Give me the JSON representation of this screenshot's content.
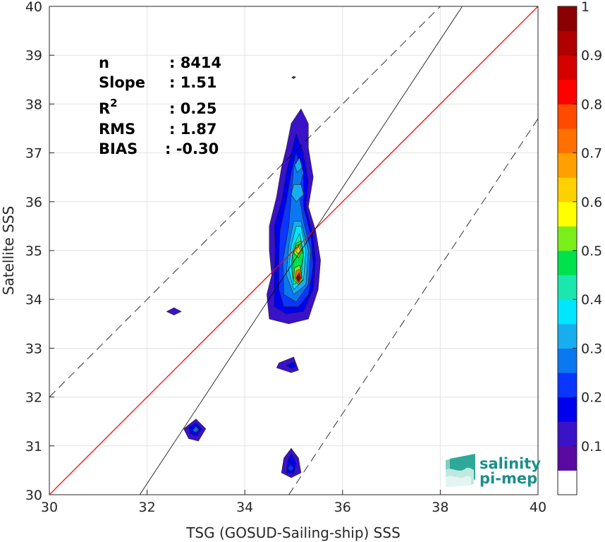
{
  "chart_data": {
    "type": "scatter",
    "subtype": "density-contour",
    "xlabel": "TSG (GOSUD-Sailing-ship) SSS",
    "ylabel": "Satellite SSS",
    "xlim": [
      30,
      40
    ],
    "ylim": [
      30,
      40
    ],
    "xticks": [
      "30",
      "32",
      "34",
      "36",
      "38",
      "40"
    ],
    "yticks": [
      "30",
      "31",
      "32",
      "33",
      "34",
      "35",
      "36",
      "37",
      "38",
      "39",
      "40"
    ],
    "grid": true,
    "reference_lines": {
      "one_to_one": {
        "color": "#ff0000",
        "from": [
          30,
          30
        ],
        "to": [
          40,
          40
        ]
      },
      "regression": {
        "color": "#000000",
        "slope": 1.51,
        "from": [
          31.85,
          30
        ],
        "to": [
          38.45,
          40
        ]
      },
      "upper_dashed": {
        "color": "#000000",
        "from": [
          30,
          32
        ],
        "to": [
          38,
          40
        ]
      },
      "lower_dashed": {
        "color": "#000000",
        "from": [
          34.9,
          30
        ],
        "to": [
          40,
          37.7
        ]
      }
    },
    "stats": [
      {
        "label": "n",
        "value": ": 8414"
      },
      {
        "label": "Slope",
        "value": ": 1.51"
      },
      {
        "label": "R",
        "sup": "2",
        "value": ": 0.25"
      },
      {
        "label": "RMS",
        "value": ": 1.87"
      },
      {
        "label": "BIAS",
        "value": ": -0.30"
      }
    ],
    "colorbar": {
      "ticks": [
        "0.1",
        "0.2",
        "0.3",
        "0.4",
        "0.5",
        "0.6",
        "0.7",
        "0.8",
        "0.9",
        "1"
      ],
      "range": [
        0,
        1
      ],
      "colors": [
        "#ffffff",
        "#5a0aa0",
        "#3a12c8",
        "#0000ee",
        "#0a36ff",
        "#0a78f0",
        "#17aef0",
        "#00e6ff",
        "#1be6ae",
        "#00e14e",
        "#7aef1a",
        "#ffff00",
        "#ffd000",
        "#ffa000",
        "#ff7000",
        "#ff4a00",
        "#ff0000",
        "#d60000",
        "#b00000",
        "#8b0000"
      ]
    },
    "contour_clusters": [
      {
        "name": "main",
        "levels": [
          {
            "level": 0.1,
            "color": "#3a12c8",
            "points": [
              [
                35.15,
                37.9
              ],
              [
                35.3,
                37.6
              ],
              [
                35.3,
                37.1
              ],
              [
                35.4,
                36.5
              ],
              [
                35.3,
                35.9
              ],
              [
                35.45,
                35.4
              ],
              [
                35.55,
                34.8
              ],
              [
                35.5,
                34.2
              ],
              [
                35.3,
                33.6
              ],
              [
                34.9,
                33.5
              ],
              [
                34.5,
                33.6
              ],
              [
                34.45,
                34.1
              ],
              [
                34.55,
                34.5
              ],
              [
                34.5,
                35.0
              ],
              [
                34.5,
                35.5
              ],
              [
                34.65,
                36.1
              ],
              [
                34.75,
                36.7
              ],
              [
                34.85,
                37.1
              ],
              [
                34.95,
                37.6
              ]
            ]
          },
          {
            "level": 0.2,
            "color": "#0000ee",
            "points": [
              [
                35.05,
                37.4
              ],
              [
                35.2,
                37.0
              ],
              [
                35.3,
                36.4
              ],
              [
                35.25,
                35.9
              ],
              [
                35.4,
                35.3
              ],
              [
                35.45,
                34.8
              ],
              [
                35.4,
                34.2
              ],
              [
                35.2,
                33.75
              ],
              [
                34.85,
                33.7
              ],
              [
                34.6,
                33.85
              ],
              [
                34.6,
                34.5
              ],
              [
                34.62,
                35.0
              ],
              [
                34.6,
                35.5
              ],
              [
                34.75,
                36.0
              ],
              [
                34.85,
                36.6
              ],
              [
                34.95,
                37.0
              ]
            ]
          },
          {
            "level": 0.25,
            "color": "#0a36ff",
            "points": [
              [
                35.05,
                37.0
              ],
              [
                35.2,
                36.5
              ],
              [
                35.2,
                35.9
              ],
              [
                35.35,
                35.3
              ],
              [
                35.4,
                34.7
              ],
              [
                35.3,
                34.1
              ],
              [
                35.1,
                33.85
              ],
              [
                34.8,
                33.85
              ],
              [
                34.7,
                34.2
              ],
              [
                34.7,
                34.8
              ],
              [
                34.72,
                35.4
              ],
              [
                34.85,
                36.0
              ],
              [
                34.95,
                36.6
              ]
            ]
          },
          {
            "level": 0.3,
            "color": "#0a78f0",
            "points": [
              [
                35.1,
                36.9
              ],
              [
                35.2,
                36.6
              ],
              [
                35.1,
                36.2
              ],
              [
                35.2,
                35.6
              ],
              [
                35.35,
                35.0
              ],
              [
                35.3,
                34.3
              ],
              [
                35.05,
                33.95
              ],
              [
                34.8,
                34.1
              ],
              [
                34.78,
                34.8
              ],
              [
                34.9,
                35.5
              ],
              [
                34.95,
                36.1
              ],
              [
                35.0,
                36.7
              ]
            ]
          },
          {
            "level": 0.35,
            "color": "#17aef0",
            "points": [
              [
                35.15,
                35.6
              ],
              [
                35.3,
                35.0
              ],
              [
                35.25,
                34.3
              ],
              [
                35.0,
                34.1
              ],
              [
                34.85,
                34.5
              ],
              [
                34.9,
                35.1
              ],
              [
                35.0,
                35.6
              ]
            ]
          },
          {
            "level": 0.35,
            "color": "#17aef0",
            "points": [
              [
                35.15,
                36.35
              ],
              [
                35.2,
                36.15
              ],
              [
                35.05,
                36.0
              ],
              [
                34.95,
                36.15
              ],
              [
                35.0,
                36.35
              ]
            ]
          },
          {
            "level": 0.35,
            "color": "#17aef0",
            "points": [
              [
                35.12,
                36.9
              ],
              [
                35.17,
                36.7
              ],
              [
                35.07,
                36.6
              ],
              [
                35.02,
                36.75
              ]
            ]
          },
          {
            "level": 0.4,
            "color": "#00e6ff",
            "points": [
              [
                35.15,
                35.5
              ],
              [
                35.25,
                35.0
              ],
              [
                35.2,
                34.4
              ],
              [
                35.0,
                34.2
              ],
              [
                34.9,
                34.6
              ],
              [
                34.95,
                35.1
              ],
              [
                35.05,
                35.5
              ]
            ]
          },
          {
            "level": 0.45,
            "color": "#1be6ae",
            "points": [
              [
                35.12,
                35.35
              ],
              [
                35.2,
                34.95
              ],
              [
                35.15,
                34.4
              ],
              [
                35.0,
                34.3
              ],
              [
                34.95,
                34.7
              ],
              [
                35.0,
                35.1
              ]
            ]
          },
          {
            "level": 0.5,
            "color": "#00e14e",
            "points": [
              [
                35.15,
                35.2
              ],
              [
                35.2,
                34.9
              ],
              [
                35.1,
                34.4
              ],
              [
                34.98,
                34.45
              ],
              [
                34.98,
                34.9
              ],
              [
                35.05,
                35.15
              ]
            ]
          },
          {
            "level": 0.6,
            "color": "#7aef1a",
            "points": [
              [
                35.12,
                35.12
              ],
              [
                35.17,
                35.0
              ],
              [
                35.1,
                34.85
              ],
              [
                35.0,
                34.95
              ],
              [
                35.05,
                35.1
              ]
            ]
          },
          {
            "level": 0.6,
            "color": "#7aef1a",
            "points": [
              [
                35.13,
                34.7
              ],
              [
                35.18,
                34.4
              ],
              [
                35.1,
                34.3
              ],
              [
                35.0,
                34.4
              ],
              [
                35.02,
                34.65
              ]
            ]
          },
          {
            "level": 0.7,
            "color": "#ffd000",
            "points": [
              [
                35.1,
                35.08
              ],
              [
                35.14,
                35.0
              ],
              [
                35.09,
                34.93
              ],
              [
                35.04,
                35.0
              ]
            ]
          },
          {
            "level": 0.75,
            "color": "#ff7000",
            "points": [
              [
                35.12,
                34.62
              ],
              [
                35.17,
                34.45
              ],
              [
                35.1,
                34.33
              ],
              [
                35.03,
                34.42
              ],
              [
                35.05,
                34.58
              ]
            ]
          },
          {
            "level": 0.85,
            "color": "#ff0000",
            "points": [
              [
                35.11,
                34.55
              ],
              [
                35.15,
                34.45
              ],
              [
                35.1,
                34.36
              ],
              [
                35.05,
                34.44
              ]
            ]
          },
          {
            "level": 1.0,
            "color": "#8b0000",
            "points": [
              [
                35.1,
                34.5
              ],
              [
                35.13,
                34.44
              ],
              [
                35.09,
                34.38
              ],
              [
                35.06,
                34.44
              ]
            ]
          }
        ]
      },
      {
        "name": "small-39",
        "levels": [
          {
            "level": 0.1,
            "color": "#3a12c8",
            "points": [
              [
                35.0,
                38.57
              ],
              [
                35.04,
                38.55
              ],
              [
                35.0,
                38.52
              ],
              [
                34.96,
                38.54
              ]
            ]
          }
        ]
      },
      {
        "name": "left-33.7",
        "levels": [
          {
            "level": 0.1,
            "color": "#3a12c8",
            "points": [
              [
                32.55,
                33.83
              ],
              [
                32.7,
                33.75
              ],
              [
                32.55,
                33.68
              ],
              [
                32.4,
                33.75
              ]
            ]
          }
        ]
      },
      {
        "name": "center-32.7",
        "levels": [
          {
            "level": 0.1,
            "color": "#3a12c8",
            "points": [
              [
                35.0,
                32.82
              ],
              [
                35.1,
                32.55
              ],
              [
                34.95,
                32.5
              ],
              [
                34.65,
                32.6
              ],
              [
                34.7,
                32.7
              ]
            ]
          },
          {
            "level": 0.2,
            "color": "#0000ee",
            "points": [
              [
                35.0,
                32.72
              ],
              [
                35.05,
                32.62
              ],
              [
                34.95,
                32.58
              ],
              [
                34.85,
                32.65
              ]
            ]
          }
        ]
      },
      {
        "name": "left-31.3",
        "levels": [
          {
            "level": 0.1,
            "color": "#3a12c8",
            "points": [
              [
                33.0,
                31.55
              ],
              [
                33.2,
                31.35
              ],
              [
                33.05,
                31.1
              ],
              [
                32.85,
                31.15
              ],
              [
                32.75,
                31.35
              ]
            ]
          },
          {
            "level": 0.2,
            "color": "#0000ee",
            "points": [
              [
                33.0,
                31.47
              ],
              [
                33.12,
                31.35
              ],
              [
                33.02,
                31.2
              ],
              [
                32.88,
                31.25
              ],
              [
                32.85,
                31.38
              ]
            ]
          },
          {
            "level": 0.3,
            "color": "#0a78f0",
            "points": [
              [
                33.0,
                31.4
              ],
              [
                33.06,
                31.33
              ],
              [
                33.0,
                31.27
              ],
              [
                32.93,
                31.32
              ]
            ]
          },
          {
            "level": 0.35,
            "color": "#17aef0",
            "points": [
              [
                33.0,
                31.36
              ],
              [
                33.03,
                31.33
              ],
              [
                33.0,
                31.3
              ],
              [
                32.97,
                31.33
              ]
            ]
          }
        ]
      },
      {
        "name": "center-30.6",
        "levels": [
          {
            "level": 0.1,
            "color": "#3a12c8",
            "points": [
              [
                34.95,
                30.95
              ],
              [
                35.1,
                30.75
              ],
              [
                35.15,
                30.45
              ],
              [
                34.95,
                30.35
              ],
              [
                34.75,
                30.45
              ],
              [
                34.8,
                30.75
              ]
            ]
          },
          {
            "level": 0.2,
            "color": "#0000ee",
            "points": [
              [
                34.95,
                30.85
              ],
              [
                35.05,
                30.65
              ],
              [
                35.0,
                30.42
              ],
              [
                34.85,
                30.45
              ],
              [
                34.88,
                30.7
              ]
            ]
          },
          {
            "level": 0.25,
            "color": "#0a36ff",
            "points": [
              [
                34.93,
                30.62
              ],
              [
                35.0,
                30.55
              ],
              [
                34.95,
                30.48
              ],
              [
                34.88,
                30.53
              ]
            ]
          }
        ]
      }
    ]
  },
  "logo": {
    "line1": "salinity",
    "line2": "pi-mep"
  }
}
